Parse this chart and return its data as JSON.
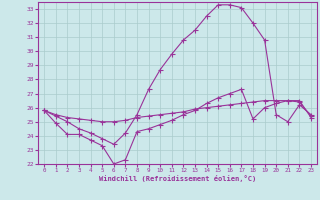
{
  "background_color": "#cce8ea",
  "grid_color": "#aacccc",
  "line_color": "#993399",
  "xlim": [
    -0.5,
    23.5
  ],
  "ylim": [
    22,
    33.5
  ],
  "xticks": [
    0,
    1,
    2,
    3,
    4,
    5,
    6,
    7,
    8,
    9,
    10,
    11,
    12,
    13,
    14,
    15,
    16,
    17,
    18,
    19,
    20,
    21,
    22,
    23
  ],
  "yticks": [
    22,
    23,
    24,
    25,
    26,
    27,
    28,
    29,
    30,
    31,
    32,
    33
  ],
  "xlabel": "Windchill (Refroidissement éolien,°C)",
  "curve1_x": [
    0,
    1,
    2,
    3,
    4,
    5,
    6,
    7,
    8,
    9,
    10,
    11,
    12,
    13,
    14,
    15,
    16,
    17,
    18,
    19,
    20,
    21,
    22,
    23
  ],
  "curve1_y": [
    25.8,
    24.9,
    24.1,
    24.1,
    23.7,
    23.3,
    22.0,
    22.3,
    24.3,
    24.5,
    24.8,
    25.1,
    25.5,
    25.8,
    26.3,
    26.7,
    27.0,
    27.3,
    25.2,
    26.0,
    26.3,
    26.5,
    26.5,
    25.3
  ],
  "curve2_x": [
    0,
    1,
    2,
    3,
    4,
    5,
    6,
    7,
    8,
    9,
    10,
    11,
    12,
    13,
    14,
    15,
    16,
    17,
    18,
    19,
    20,
    21,
    22,
    23
  ],
  "curve2_y": [
    25.8,
    25.5,
    25.3,
    25.2,
    25.1,
    25.0,
    25.0,
    25.1,
    25.3,
    25.4,
    25.5,
    25.6,
    25.7,
    25.9,
    26.0,
    26.1,
    26.2,
    26.3,
    26.4,
    26.5,
    26.5,
    26.5,
    26.4,
    25.4
  ],
  "curve3_x": [
    0,
    1,
    2,
    3,
    4,
    5,
    6,
    7,
    8,
    9,
    10,
    11,
    12,
    13,
    14,
    15,
    16,
    17,
    18,
    19,
    20,
    21,
    22,
    23
  ],
  "curve3_y": [
    25.8,
    25.4,
    25.0,
    24.5,
    24.2,
    23.8,
    23.4,
    24.2,
    25.5,
    27.3,
    28.7,
    29.8,
    30.8,
    31.5,
    32.5,
    33.3,
    33.3,
    33.1,
    32.0,
    30.8,
    25.5,
    25.0,
    26.2,
    25.5
  ]
}
